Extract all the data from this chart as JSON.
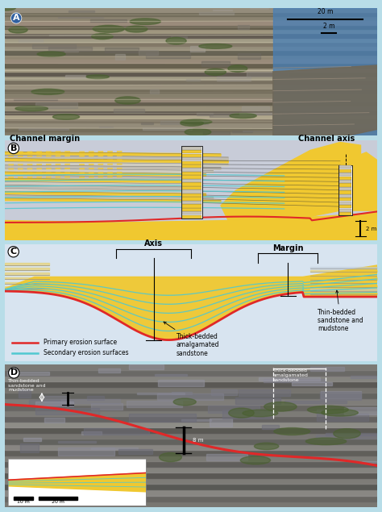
{
  "bg_color": "#b8dde8",
  "yellow_color": "#f0c830",
  "yellow_light": "#f5d860",
  "cyan_color": "#50c8d0",
  "cyan_light": "#80d8e0",
  "red_color": "#e02828",
  "gray_bg_b": "#c8ccd8",
  "gray_bg_c": "#d0dce8",
  "panel_A_bg": "#7a7868",
  "panel_D_bg": "#6a6858",
  "channel_margin": "Channel margin",
  "channel_axis": "Channel axis",
  "axis_label": "Axis",
  "margin_label": "Margin",
  "primary_legend": "Primary erosion surface",
  "secondary_legend": "Secondary erosion surfaces",
  "thick_bedded": "Thick-bedded\namalgamated\nsandstone",
  "thin_bedded": "Thin-bedded\nsandstone and\nmudstone",
  "scale_20m_A": "20 m",
  "scale_2m_A": "2 m",
  "scale_2m_B": "2 m",
  "scale_8m_D": "8 m",
  "scale_10m_D": "10 m",
  "scale_20m_D": "20 m"
}
